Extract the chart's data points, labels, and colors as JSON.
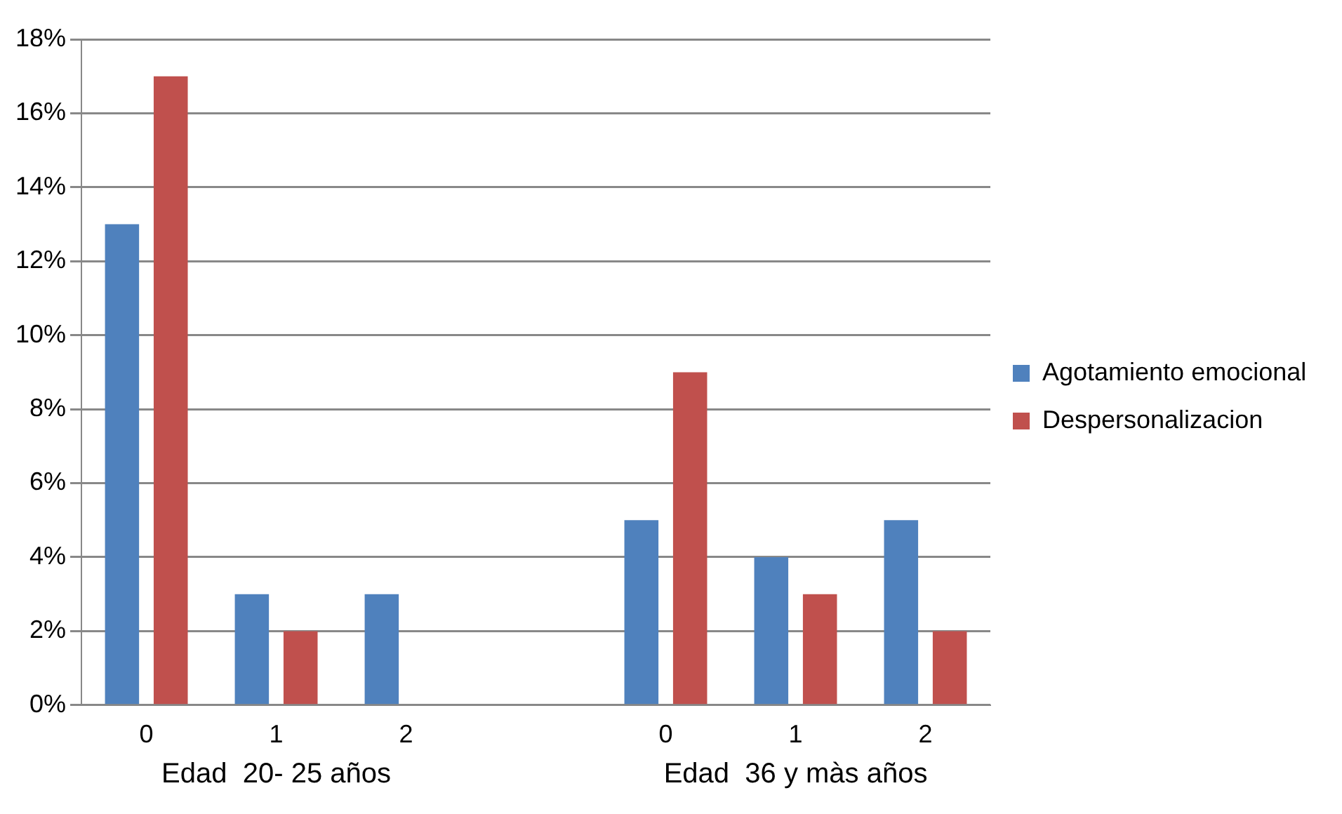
{
  "chart_data": {
    "type": "bar",
    "categories": [
      "0",
      "1",
      "2",
      null,
      "0",
      "1",
      "2"
    ],
    "series": [
      {
        "name": "Agotamiento emocional",
        "color": "#4f81bd",
        "values": [
          13,
          3,
          3,
          null,
          5,
          4,
          5
        ]
      },
      {
        "name": "Despersonalizacion",
        "color": "#c0504d",
        "values": [
          17,
          2,
          0,
          null,
          9,
          3,
          2
        ]
      }
    ],
    "ylim": [
      0,
      18
    ],
    "yticks": [
      {
        "value": 0,
        "label": "0%"
      },
      {
        "value": 2,
        "label": "2%"
      },
      {
        "value": 4,
        "label": "4%"
      },
      {
        "value": 6,
        "label": "6%"
      },
      {
        "value": 8,
        "label": "8%"
      },
      {
        "value": 10,
        "label": "10%"
      },
      {
        "value": 12,
        "label": "12%"
      },
      {
        "value": 14,
        "label": "14%"
      },
      {
        "value": 16,
        "label": "16%"
      },
      {
        "value": 18,
        "label": "18%"
      }
    ],
    "grid": "y",
    "legend": "right",
    "annotations": [
      "Edad  20- 25 años",
      "Edad  36 y màs años"
    ]
  }
}
